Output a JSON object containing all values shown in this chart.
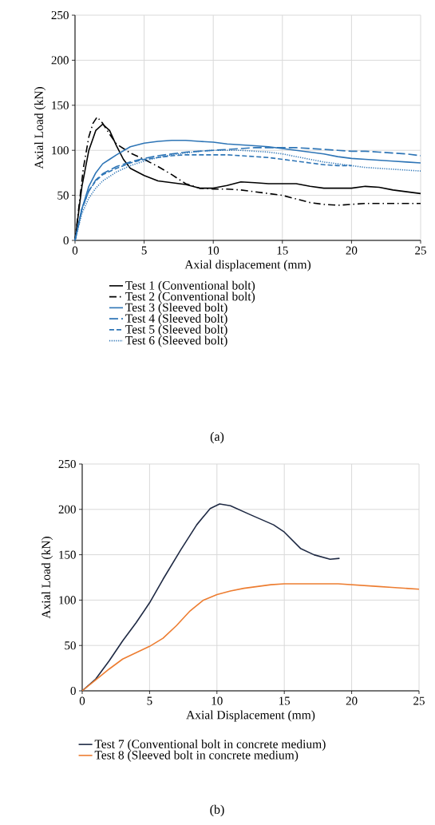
{
  "chart_data": [
    {
      "type": "line",
      "title": "(a)",
      "xlabel": "Axial displacement (mm)",
      "ylabel": "Axial Load (kN)",
      "xlim": [
        0,
        25
      ],
      "ylim": [
        0,
        250
      ],
      "xticks": [
        0,
        5,
        10,
        15,
        20,
        25
      ],
      "yticks": [
        0,
        50,
        100,
        150,
        200,
        250
      ],
      "grid": true,
      "legend": "bottom",
      "marker": "none",
      "series": [
        {
          "name": "Test 1 (Conventional bolt)",
          "color": "#000000",
          "line_style": "solid",
          "x": [
            0,
            0.5,
            1,
            1.5,
            2,
            2.5,
            3,
            3.5,
            4,
            5,
            6,
            7,
            8,
            9,
            10,
            11,
            12,
            13,
            14,
            15,
            16,
            17,
            18,
            19,
            20,
            21,
            22,
            23,
            24,
            25
          ],
          "values": [
            0,
            60,
            100,
            122,
            129,
            122,
            105,
            90,
            80,
            72,
            66,
            64,
            62,
            58,
            58,
            61,
            65,
            64,
            63,
            63,
            63,
            60,
            58,
            58,
            58,
            60,
            59,
            56,
            54,
            52
          ]
        },
        {
          "name": "Test 2 (Conventional bolt)",
          "color": "#000000",
          "line_style": "dashdot",
          "x": [
            0,
            0.3,
            0.6,
            1,
            1.3,
            1.6,
            2,
            2.5,
            3,
            4,
            5,
            6,
            7,
            8,
            9,
            10,
            11,
            12,
            13,
            14,
            15,
            16,
            17,
            18,
            19,
            20,
            21,
            22,
            23,
            24,
            25
          ],
          "values": [
            0,
            40,
            80,
            115,
            130,
            137,
            130,
            118,
            107,
            97,
            90,
            82,
            73,
            63,
            58,
            57,
            57,
            56,
            54,
            52,
            50,
            46,
            42,
            40,
            39,
            40,
            41,
            41,
            41,
            41,
            41
          ]
        },
        {
          "name": "Test 3 (Sleeved bolt)",
          "color": "#2e75b6",
          "line_style": "solid",
          "x": [
            0,
            0.5,
            1,
            1.5,
            2,
            2.5,
            3,
            4,
            5,
            6,
            7,
            8,
            9,
            10,
            11,
            12,
            13,
            14,
            15,
            16,
            17,
            18,
            19,
            20,
            21,
            22,
            23,
            24,
            25
          ],
          "values": [
            0,
            35,
            60,
            75,
            85,
            90,
            95,
            104,
            108,
            110,
            111,
            111,
            110,
            109,
            107,
            106,
            105,
            104,
            102,
            100,
            98,
            96,
            93,
            91,
            90,
            89,
            88,
            87,
            86
          ]
        },
        {
          "name": "Test 4 (Sleeved bolt)",
          "color": "#2e75b6",
          "line_style": "longdash",
          "x": [
            0,
            0.5,
            1,
            1.5,
            2,
            3,
            4,
            5,
            6,
            7,
            8,
            9,
            10,
            11,
            12,
            13,
            14,
            15,
            16,
            17,
            18,
            19,
            20,
            21,
            22,
            23,
            24,
            25
          ],
          "values": [
            0,
            35,
            55,
            67,
            74,
            82,
            87,
            91,
            94,
            96,
            98,
            99,
            100,
            101,
            102,
            103,
            103,
            103,
            103,
            102,
            101,
            100,
            99,
            99,
            98,
            97,
            96,
            94
          ]
        },
        {
          "name": "Test 5 (Sleeved bolt)",
          "color": "#2e75b6",
          "line_style": "dashed",
          "x": [
            0,
            0.5,
            1,
            1.5,
            2,
            3,
            4,
            5,
            6,
            7,
            8,
            9,
            10,
            11,
            12,
            13,
            14,
            15,
            16,
            17,
            18,
            19,
            20
          ],
          "values": [
            0,
            35,
            55,
            66,
            73,
            80,
            86,
            90,
            92,
            94,
            95,
            95,
            95,
            95,
            94,
            93,
            92,
            90,
            88,
            86,
            84,
            83,
            83
          ]
        },
        {
          "name": "Test 6 (Sleeved bolt)",
          "color": "#2e75b6",
          "line_style": "dotted",
          "x": [
            0,
            0.5,
            1,
            1.5,
            2,
            3,
            4,
            5,
            6,
            7,
            8,
            9,
            10,
            11,
            12,
            13,
            14,
            15,
            16,
            17,
            18,
            19,
            20,
            21,
            22,
            23,
            24,
            25
          ],
          "values": [
            0,
            30,
            47,
            58,
            66,
            76,
            83,
            88,
            92,
            95,
            97,
            99,
            100,
            100,
            100,
            99,
            98,
            96,
            93,
            90,
            87,
            85,
            83,
            81,
            80,
            79,
            78,
            77
          ]
        }
      ]
    },
    {
      "type": "line",
      "title": "(b)",
      "xlabel": "Axial Displacement (mm)",
      "ylabel": "Axial Load (kN)",
      "xlim": [
        0,
        25
      ],
      "ylim": [
        0,
        250
      ],
      "xticks": [
        0,
        5,
        10,
        15,
        20,
        25
      ],
      "yticks": [
        0,
        50,
        100,
        150,
        200,
        250
      ],
      "grid": true,
      "legend": "bottom",
      "marker": "none",
      "series": [
        {
          "name": "Test 7 (Conventional bolt in concrete medium)",
          "color": "#1f2a44",
          "line_style": "solid",
          "x": [
            0,
            1,
            2,
            3,
            4,
            5,
            6,
            7.3,
            8.5,
            9.5,
            10.2,
            11,
            12.5,
            14.2,
            15,
            16.2,
            17.2,
            18.4,
            19.1
          ],
          "values": [
            0,
            13,
            33,
            55,
            75,
            97,
            123,
            155,
            183,
            201,
            206,
            204,
            194,
            183,
            175,
            157,
            150,
            145,
            146
          ]
        },
        {
          "name": "Test 8 (Sleeved bolt in concrete medium)",
          "color": "#ed7d31",
          "line_style": "solid",
          "x": [
            0,
            1,
            2,
            3,
            4,
            5,
            6,
            7,
            8,
            9,
            10,
            11,
            12,
            13,
            14,
            15,
            16,
            17,
            18,
            19,
            20,
            21,
            22,
            23,
            24,
            25
          ],
          "values": [
            0,
            12,
            24,
            35,
            42,
            49,
            58,
            72,
            88,
            100,
            106,
            110,
            113,
            115,
            117,
            118,
            118,
            118,
            118,
            118,
            117,
            116,
            115,
            114,
            113,
            112
          ]
        }
      ]
    }
  ]
}
